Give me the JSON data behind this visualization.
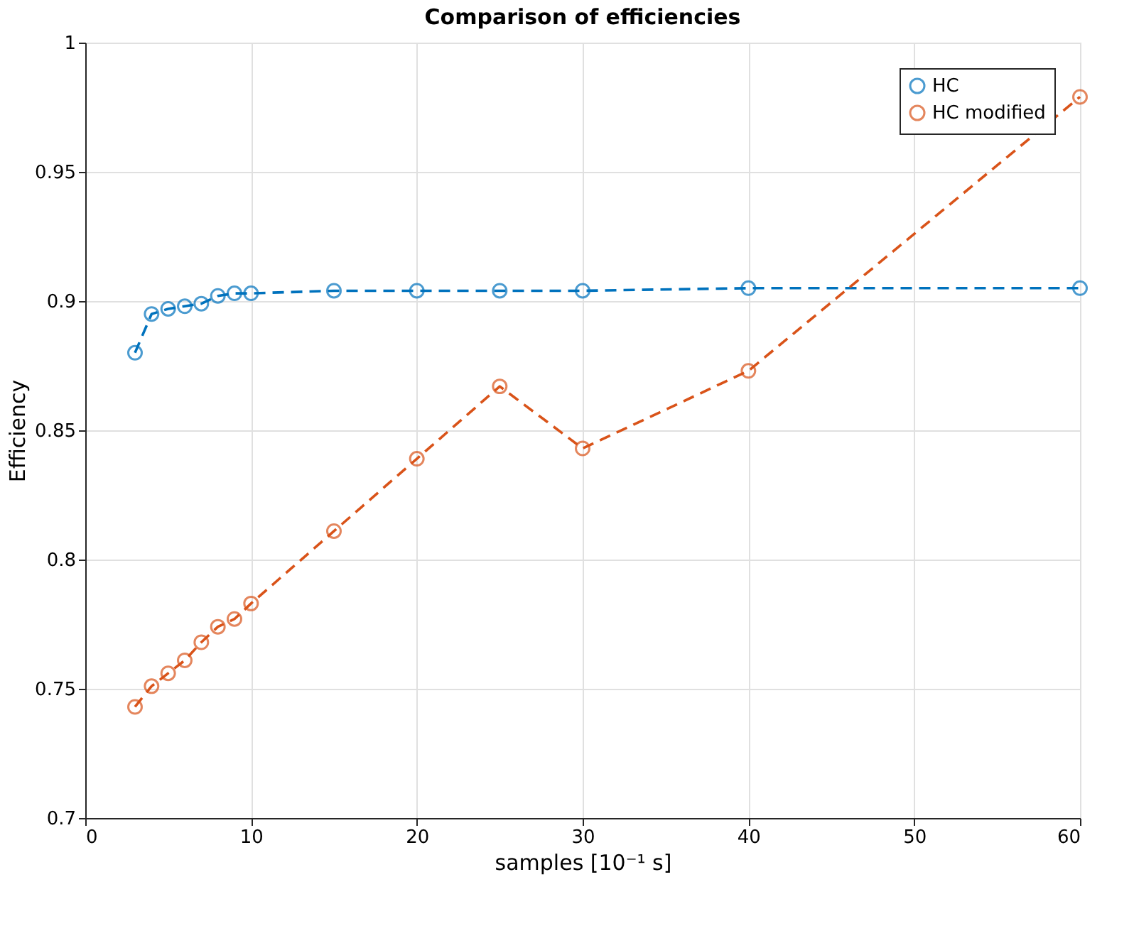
{
  "chart_data": {
    "type": "line",
    "title": "Comparison of efficiencies",
    "xlabel": "samples [10⁻¹ s]",
    "ylabel": "Efficiency",
    "x": [
      3,
      4,
      5,
      6,
      7,
      8,
      9,
      10,
      15,
      20,
      25,
      30,
      40,
      60
    ],
    "series": [
      {
        "name": "HC",
        "color": "#0072bd",
        "values": [
          0.88,
          0.895,
          0.897,
          0.898,
          0.899,
          0.902,
          0.903,
          0.903,
          0.904,
          0.904,
          0.904,
          0.904,
          0.905,
          0.905
        ]
      },
      {
        "name": "HC modified",
        "color": "#d95319",
        "values": [
          0.743,
          0.751,
          0.756,
          0.761,
          0.768,
          0.774,
          0.777,
          0.783,
          0.811,
          0.839,
          0.867,
          0.843,
          0.873,
          0.979
        ]
      }
    ],
    "xlim": [
      0,
      60
    ],
    "xticks": [
      0,
      10,
      20,
      30,
      40,
      50,
      60
    ],
    "ylim": [
      0.7,
      1
    ],
    "yticks": [
      0.7,
      0.75,
      0.8,
      0.85,
      0.9,
      0.95,
      1
    ],
    "grid": true,
    "legend": "top right",
    "marker": "circle",
    "line_style": "dashed"
  }
}
